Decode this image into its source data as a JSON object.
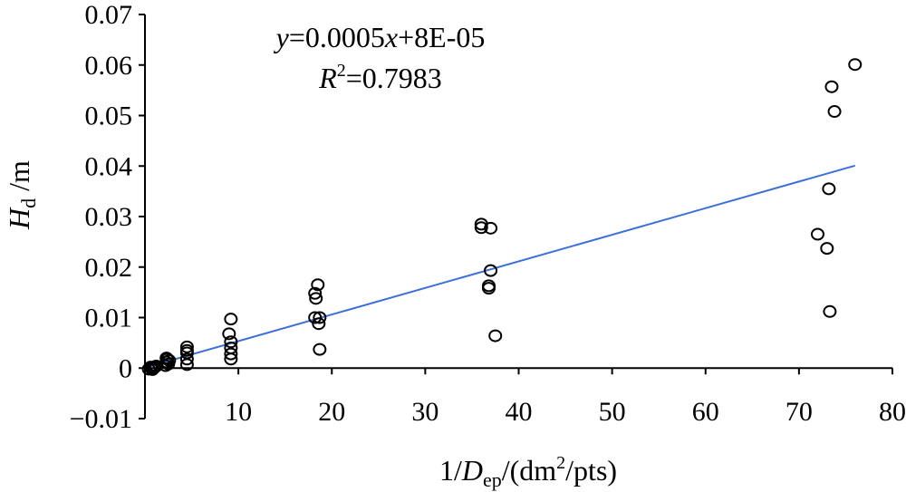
{
  "chart_data": {
    "type": "scatter",
    "xlim": [
      0,
      80
    ],
    "ylim": [
      -0.01,
      0.07
    ],
    "x_ticks": [
      0,
      10,
      20,
      30,
      40,
      50,
      60,
      70,
      80
    ],
    "x_tick_labels": [
      "0",
      "10",
      "20",
      "30",
      "40",
      "50",
      "60",
      "70",
      "80"
    ],
    "y_ticks": [
      -0.01,
      0,
      0.01,
      0.02,
      0.03,
      0.04,
      0.05,
      0.06,
      0.07
    ],
    "y_tick_labels": [
      "−0.01",
      "0",
      "0.01",
      "0.02",
      "0.03",
      "0.04",
      "0.05",
      "0.06",
      "0.07"
    ],
    "xlabel": {
      "prefix": "1/",
      "var": "D",
      "sub": "ep",
      "unit_open": "/(dm",
      "sup": "2",
      "unit_close": "/pts)"
    },
    "ylabel": {
      "var": "H",
      "sub": "d",
      "unit": " /m"
    },
    "equation": {
      "y": "y",
      "rhs": "=0.0005",
      "x": "x",
      "tail": "+8E-05"
    },
    "r_squared": {
      "r": "R",
      "sup": "2",
      "value": "=0.7983"
    },
    "trendline": {
      "x": [
        0,
        76
      ],
      "y": [
        8e-05,
        0.04008
      ]
    },
    "trend_color": "#3b6fd9",
    "points": [
      {
        "x": 0.4,
        "y": -0.0002
      },
      {
        "x": 0.6,
        "y": 0.0002
      },
      {
        "x": 0.8,
        "y": -0.0003
      },
      {
        "x": 1.0,
        "y": 0.0001
      },
      {
        "x": 1.2,
        "y": 0.0004
      },
      {
        "x": 0.9,
        "y": 0.0
      },
      {
        "x": 0.7,
        "y": -0.0001
      },
      {
        "x": 1.1,
        "y": 0.0003
      },
      {
        "x": 2.2,
        "y": 0.0005
      },
      {
        "x": 2.3,
        "y": 0.0012
      },
      {
        "x": 2.4,
        "y": 0.0018
      },
      {
        "x": 2.5,
        "y": 0.0008
      },
      {
        "x": 2.6,
        "y": 0.0015
      },
      {
        "x": 2.3,
        "y": 0.002
      },
      {
        "x": 4.5,
        "y": 0.0042
      },
      {
        "x": 4.5,
        "y": 0.0035
      },
      {
        "x": 4.5,
        "y": 0.003
      },
      {
        "x": 4.5,
        "y": 0.0018
      },
      {
        "x": 4.5,
        "y": 0.0007
      },
      {
        "x": 9.2,
        "y": 0.0097
      },
      {
        "x": 9.0,
        "y": 0.0068
      },
      {
        "x": 9.2,
        "y": 0.0052
      },
      {
        "x": 9.2,
        "y": 0.004
      },
      {
        "x": 9.2,
        "y": 0.0028
      },
      {
        "x": 9.2,
        "y": 0.0018
      },
      {
        "x": 18.5,
        "y": 0.0165
      },
      {
        "x": 18.2,
        "y": 0.0148
      },
      {
        "x": 18.3,
        "y": 0.0138
      },
      {
        "x": 18.2,
        "y": 0.01
      },
      {
        "x": 18.7,
        "y": 0.01
      },
      {
        "x": 18.6,
        "y": 0.0088
      },
      {
        "x": 18.7,
        "y": 0.0037
      },
      {
        "x": 36.0,
        "y": 0.0285
      },
      {
        "x": 36.0,
        "y": 0.0278
      },
      {
        "x": 37.0,
        "y": 0.0277
      },
      {
        "x": 37.0,
        "y": 0.0193
      },
      {
        "x": 36.8,
        "y": 0.0163
      },
      {
        "x": 36.8,
        "y": 0.0158
      },
      {
        "x": 37.5,
        "y": 0.0064
      },
      {
        "x": 76.0,
        "y": 0.0601
      },
      {
        "x": 73.5,
        "y": 0.0557
      },
      {
        "x": 73.8,
        "y": 0.0508
      },
      {
        "x": 73.2,
        "y": 0.0355
      },
      {
        "x": 72.0,
        "y": 0.0265
      },
      {
        "x": 73.0,
        "y": 0.0237
      },
      {
        "x": 73.3,
        "y": 0.0112
      }
    ]
  }
}
